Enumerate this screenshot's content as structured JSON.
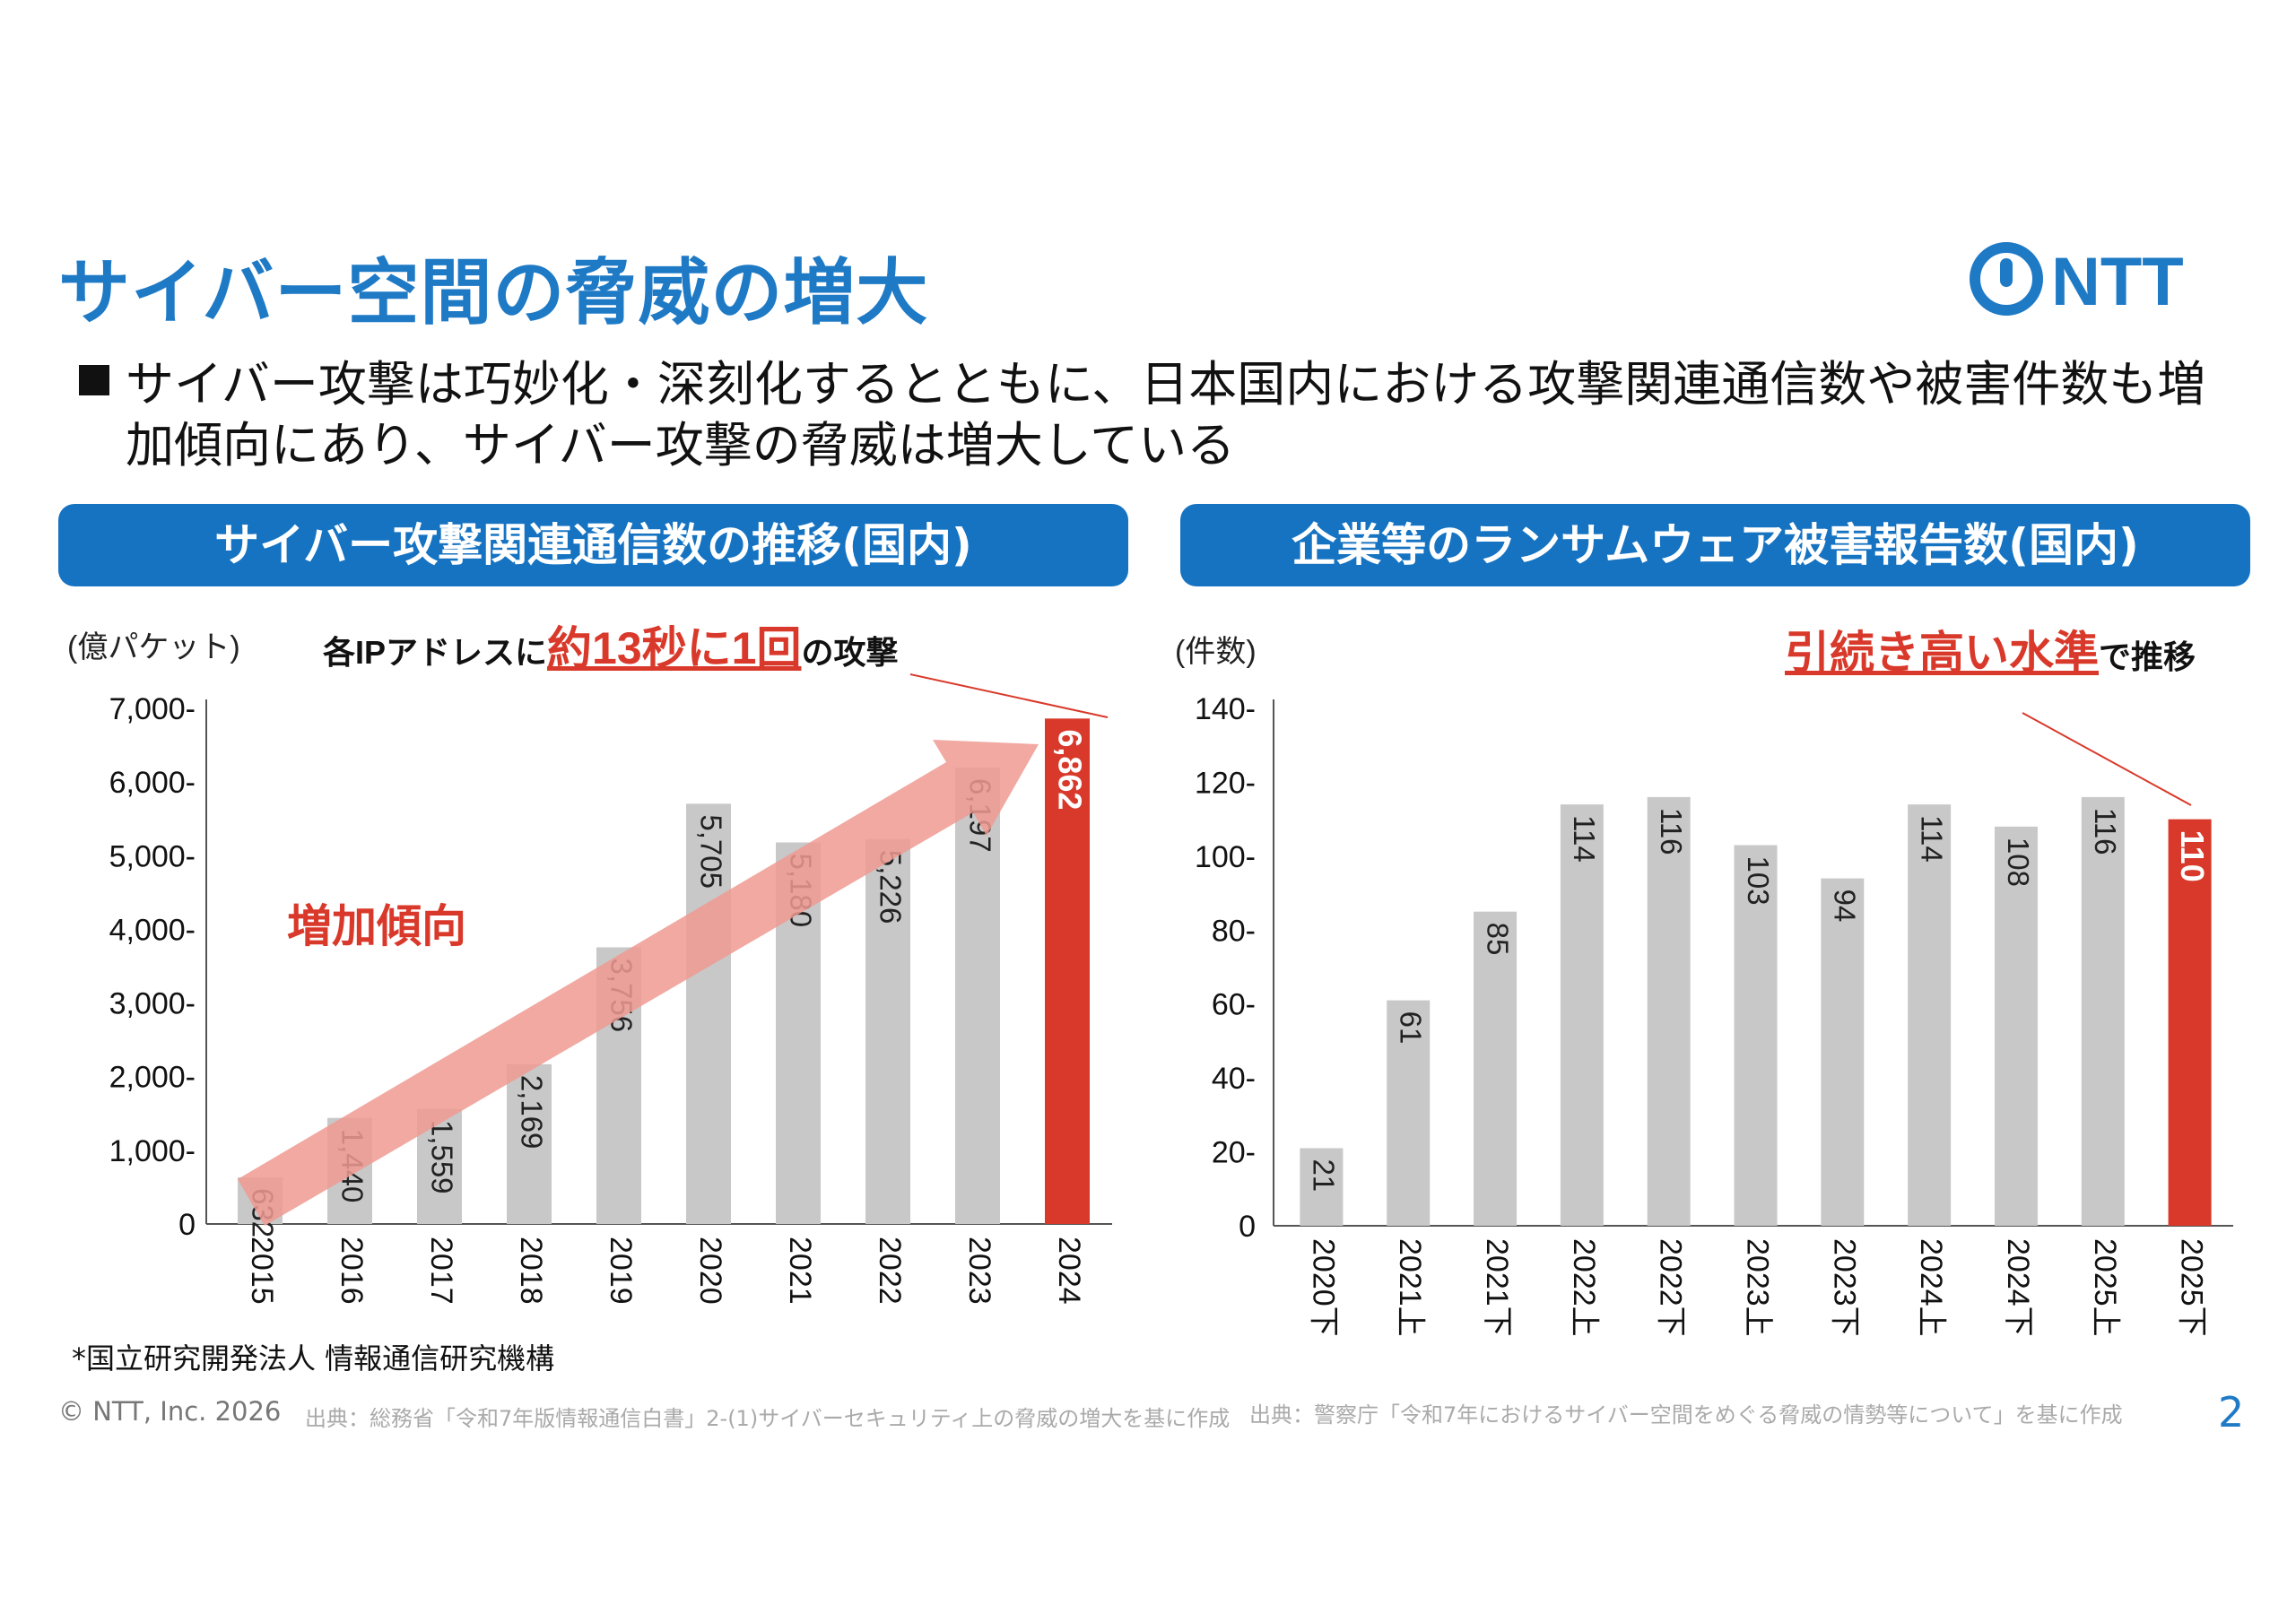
{
  "title": "サイバー空間の脅威の増大",
  "logo_text": "NTT",
  "bullet": "サイバー攻撃は巧妙化・深刻化するとともに、日本国内における攻撃関連通信数や被害件数も増加傾向にあり、サイバー攻撃の脅威は増大している",
  "colors": {
    "brand_blue": "#1573c2",
    "bar_grey": "#c8c8c8",
    "highlight_red": "#d9392a",
    "trend_arrow": "#ef9a92"
  },
  "chart_data": [
    {
      "type": "bar",
      "title": "サイバー攻撃関連通信数の推移(国内)",
      "ylabel": "(億パケット)",
      "ylim": [
        0,
        7000
      ],
      "yticks": [
        "0",
        "1,000-",
        "2,000-",
        "3,000-",
        "4,000-",
        "5,000-",
        "6,000-",
        "7,000-"
      ],
      "categories": [
        "2015",
        "2016",
        "2017",
        "2018",
        "2019",
        "2020",
        "2021",
        "2022",
        "2023",
        "2024"
      ],
      "values": [
        632,
        1440,
        1559,
        2169,
        3756,
        5705,
        5180,
        5226,
        6197,
        6862
      ],
      "value_labels": [
        "632",
        "1,440",
        "1,559",
        "2,169",
        "3,756",
        "5,705",
        "5,180",
        "5,226",
        "6,197",
        "6,862"
      ],
      "highlight_index": 9,
      "annotation": {
        "prefix": "各IPアドレスに",
        "emphasis": "約13秒に1回",
        "suffix": "の攻撃"
      },
      "trend_label": "増加傾向",
      "note": "*国立研究開発法人 情報通信研究機構"
    },
    {
      "type": "bar",
      "title": "企業等のランサムウェア被害報告数(国内)",
      "ylabel": "(件数)",
      "ylim": [
        0,
        140
      ],
      "yticks": [
        "0",
        "20-",
        "40-",
        "60-",
        "80-",
        "100-",
        "120-",
        "140-"
      ],
      "categories": [
        "2020下",
        "2021上",
        "2021下",
        "2022上",
        "2022下",
        "2023上",
        "2023下",
        "2024上",
        "2024下",
        "2025上",
        "2025下"
      ],
      "values": [
        21,
        61,
        85,
        114,
        116,
        103,
        94,
        114,
        108,
        116,
        110
      ],
      "value_labels": [
        "21",
        "61",
        "85",
        "114",
        "116",
        "103",
        "94",
        "114",
        "108",
        "116",
        "110"
      ],
      "highlight_index": 10,
      "annotation": {
        "emphasis": "引続き高い水準",
        "suffix": "で推移"
      }
    }
  ],
  "footer": {
    "copyright": "© NTT, Inc.  2026",
    "source_left": "出典：総務省「令和7年版情報通信白書」2-(1)サイバーセキュリティ上の脅威の増大を基に作成",
    "source_right": "出典：警察庁「令和7年におけるサイバー空間をめぐる脅威の情勢等について」を基に作成",
    "page": "2"
  }
}
